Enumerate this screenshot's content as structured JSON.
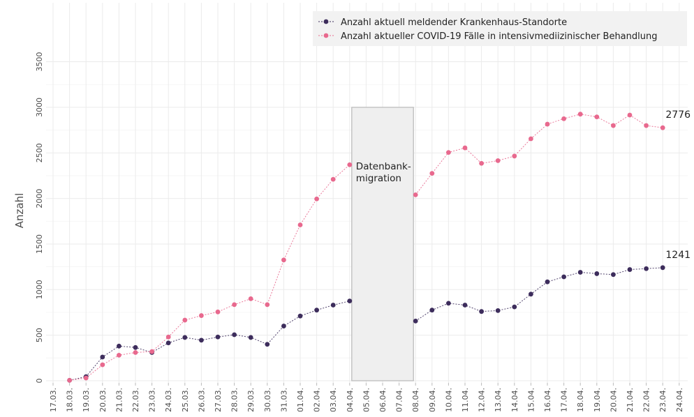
{
  "chart_data": {
    "type": "line",
    "title": "",
    "xlabel": "",
    "ylabel": "Anzahl",
    "ylim": [
      0,
      3500
    ],
    "yticks": [
      0,
      500,
      1000,
      1500,
      2000,
      2500,
      3000,
      3500
    ],
    "grid": true,
    "legend_position": "top-right",
    "categories": [
      "17.03.",
      "18.03.",
      "19.03.",
      "20.03.",
      "21.03.",
      "22.03.",
      "23.03.",
      "24.03.",
      "25.03.",
      "26.03.",
      "27.03.",
      "28.03.",
      "29.03.",
      "30.03.",
      "31.03.",
      "01.04.",
      "02.04.",
      "03.04.",
      "04.04.",
      "05.04.",
      "06.04.",
      "07.04.",
      "08.04.",
      "09.04.",
      "10.04.",
      "11.04.",
      "12.04.",
      "13.04.",
      "14.04.",
      "15.04.",
      "16.04.",
      "17.04.",
      "18.04.",
      "19.04.",
      "20.04.",
      "21.04.",
      "22.04.",
      "23.04.",
      "24.04."
    ],
    "series": [
      {
        "name": "Anzahl aktuell meldender Krankenhaus-Standorte",
        "color": "#3d2d5c",
        "values": [
          null,
          5,
          45,
          260,
          380,
          365,
          310,
          415,
          475,
          445,
          480,
          505,
          475,
          400,
          600,
          710,
          775,
          830,
          875,
          null,
          null,
          null,
          655,
          775,
          850,
          830,
          760,
          770,
          810,
          950,
          1085,
          1140,
          1190,
          1175,
          1165,
          1220,
          1230,
          1241,
          null
        ]
      },
      {
        "name": "Anzahl aktueller COVID-19 Fälle in intensivmediizinischer Behandlung",
        "color": "#e8698e",
        "values": [
          null,
          5,
          30,
          175,
          280,
          310,
          320,
          480,
          665,
          715,
          755,
          835,
          900,
          835,
          1325,
          1710,
          1995,
          2210,
          2370,
          null,
          null,
          null,
          2040,
          2275,
          2505,
          2555,
          2385,
          2415,
          2465,
          2655,
          2815,
          2875,
          2925,
          2895,
          2800,
          2915,
          2800,
          2776,
          null
        ]
      }
    ],
    "annotations": [
      {
        "text": "2776",
        "series": 1,
        "category": "23.04."
      },
      {
        "text": "1241",
        "series": 0,
        "category": "23.04."
      }
    ],
    "shaded_region": {
      "from": "04.04.",
      "to": "08.04.",
      "label_line1": "Datenbank-",
      "label_line2": "migration",
      "ymax": 3000,
      "fill": "#efefef",
      "stroke": "#bdbdbd"
    },
    "colors": {
      "grid": "#ebebeb",
      "axis_text": "#4d4d4d"
    }
  }
}
